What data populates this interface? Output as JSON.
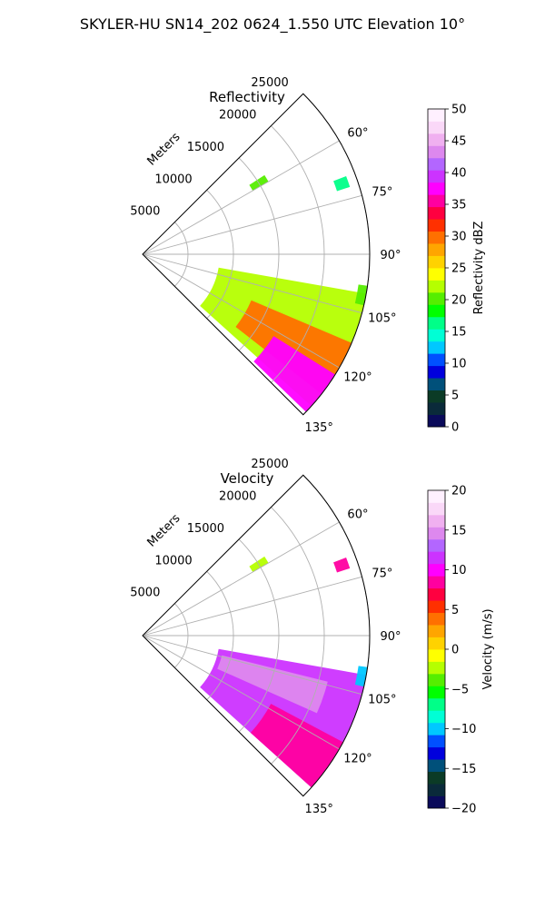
{
  "suptitle": "SKYLER-HU  SN14_202  0624_1.550 UTC Elevation 10°",
  "chart_data": [
    {
      "type": "heatmap",
      "subtype": "polar-sector-ppi",
      "title": "Reflectivity",
      "range_label": "Meters",
      "range_ticks": [
        5000,
        10000,
        15000,
        20000,
        25000
      ],
      "range_max": 25000,
      "azimuth_range_deg": [
        45,
        135
      ],
      "azimuth_ticks_deg": [
        60,
        75,
        90,
        105,
        120,
        135
      ],
      "azimuth_tick_suffix": "°",
      "grid": true,
      "colorbar": {
        "label": "Reflectivity dBZ",
        "min": 0,
        "max": 50,
        "ticks": [
          0,
          5,
          10,
          15,
          20,
          25,
          30,
          35,
          40,
          45,
          50
        ],
        "colors": [
          "#0a0a5a",
          "#0a2a3a",
          "#0b3b26",
          "#00507a",
          "#0000dd",
          "#0050ff",
          "#00c8ff",
          "#00ffd5",
          "#00ff88",
          "#00ff00",
          "#55ee00",
          "#b5ff00",
          "#ffff00",
          "#ffd200",
          "#ffa500",
          "#ff7000",
          "#ff3000",
          "#ff0040",
          "#ff00a0",
          "#ff00ff",
          "#cc33ff",
          "#b366ff",
          "#dd88ee",
          "#f0b0f0",
          "#fad8f8",
          "#fff0ff"
        ]
      },
      "echo_regions": [
        {
          "az_deg": [
            100,
            132
          ],
          "range_m": [
            8500,
            25000
          ],
          "value": 23
        },
        {
          "az_deg": [
            113,
            128
          ],
          "range_m": [
            13000,
            25000
          ],
          "value": 30
        },
        {
          "az_deg": [
            122,
            134
          ],
          "range_m": [
            17000,
            25000
          ],
          "value": 38
        },
        {
          "az_deg": [
            98,
            103
          ],
          "range_m": [
            24000,
            25000
          ],
          "value": 20
        },
        {
          "az_deg": [
            69,
            72
          ],
          "range_m": [
            22500,
            24000
          ],
          "value": 17
        },
        {
          "az_deg": [
            57,
            60
          ],
          "range_m": [
            14000,
            16000
          ],
          "value": 20
        }
      ]
    },
    {
      "type": "heatmap",
      "subtype": "polar-sector-ppi",
      "title": "Velocity",
      "range_label": "Meters",
      "range_ticks": [
        5000,
        10000,
        15000,
        20000,
        25000
      ],
      "range_max": 25000,
      "azimuth_range_deg": [
        45,
        135
      ],
      "azimuth_ticks_deg": [
        60,
        75,
        90,
        105,
        120,
        135
      ],
      "azimuth_tick_suffix": "°",
      "grid": true,
      "colorbar": {
        "label": "Velocity (m/s)",
        "min": -20,
        "max": 20,
        "ticks": [
          -20,
          -15,
          -10,
          -5,
          0,
          5,
          10,
          15,
          20
        ],
        "colors": [
          "#0a0a5a",
          "#0a2a3a",
          "#0b3b26",
          "#00507a",
          "#0000dd",
          "#0050ff",
          "#00c8ff",
          "#00ffd5",
          "#00ff88",
          "#00ff00",
          "#55ee00",
          "#b5ff00",
          "#ffff00",
          "#ffd200",
          "#ffa500",
          "#ff7000",
          "#ff3000",
          "#ff0040",
          "#ff00a0",
          "#ff00ff",
          "#cc33ff",
          "#b366ff",
          "#dd88ee",
          "#f0b0f0",
          "#fad8f8",
          "#fff0ff"
        ]
      },
      "echo_regions": [
        {
          "az_deg": [
            100,
            132
          ],
          "range_m": [
            8500,
            25000
          ],
          "value": 11
        },
        {
          "az_deg": [
            104,
            114
          ],
          "range_m": [
            9000,
            21000
          ],
          "value": 15
        },
        {
          "az_deg": [
            118,
            132
          ],
          "range_m": [
            16000,
            25000
          ],
          "value": 9
        },
        {
          "az_deg": [
            98,
            103
          ],
          "range_m": [
            24000,
            25000
          ],
          "value": -10
        },
        {
          "az_deg": [
            69,
            72
          ],
          "range_m": [
            22500,
            24000
          ],
          "value": 9
        },
        {
          "az_deg": [
            57,
            60
          ],
          "range_m": [
            14000,
            16000
          ],
          "value": -3
        }
      ]
    }
  ]
}
